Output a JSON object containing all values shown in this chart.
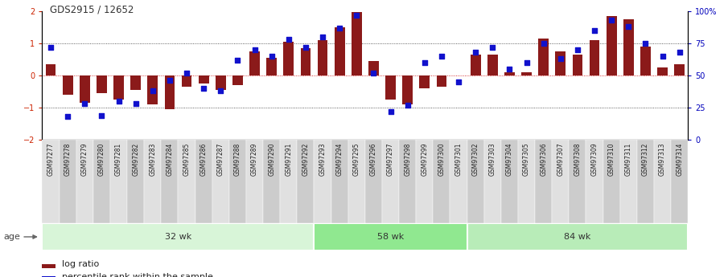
{
  "title": "GDS2915 / 12652",
  "samples": [
    "GSM97277",
    "GSM97278",
    "GSM97279",
    "GSM97280",
    "GSM97281",
    "GSM97282",
    "GSM97283",
    "GSM97284",
    "GSM97285",
    "GSM97286",
    "GSM97287",
    "GSM97288",
    "GSM97289",
    "GSM97290",
    "GSM97291",
    "GSM97292",
    "GSM97293",
    "GSM97294",
    "GSM97295",
    "GSM97296",
    "GSM97297",
    "GSM97298",
    "GSM97299",
    "GSM97300",
    "GSM97301",
    "GSM97302",
    "GSM97303",
    "GSM97304",
    "GSM97305",
    "GSM97306",
    "GSM97307",
    "GSM97308",
    "GSM97309",
    "GSM97310",
    "GSM97311",
    "GSM97312",
    "GSM97313",
    "GSM97314"
  ],
  "log_ratio": [
    0.35,
    -0.6,
    -0.85,
    -0.55,
    -0.75,
    -0.45,
    -0.9,
    -1.05,
    -0.35,
    -0.25,
    -0.45,
    -0.3,
    0.75,
    0.55,
    1.05,
    0.85,
    1.1,
    1.5,
    1.97,
    0.45,
    -0.75,
    -0.9,
    -0.4,
    -0.35,
    0.0,
    0.65,
    0.65,
    0.1,
    0.1,
    1.15,
    0.75,
    0.65,
    1.1,
    1.85,
    1.75,
    0.9,
    0.25,
    0.35
  ],
  "percentile": [
    0.72,
    0.18,
    0.28,
    0.19,
    0.3,
    0.28,
    0.38,
    0.46,
    0.52,
    0.4,
    0.38,
    0.62,
    0.7,
    0.65,
    0.78,
    0.72,
    0.8,
    0.87,
    0.97,
    0.52,
    0.22,
    0.27,
    0.6,
    0.65,
    0.45,
    0.68,
    0.72,
    0.55,
    0.6,
    0.75,
    0.63,
    0.7,
    0.85,
    0.93,
    0.88,
    0.75,
    0.65,
    0.68
  ],
  "group_labels": [
    "32 wk",
    "58 wk",
    "84 wk"
  ],
  "group_ends": [
    16,
    25,
    38
  ],
  "group_color_light": "#d8f5d8",
  "group_color_mid": "#90e890",
  "group_color_dark": "#b8ecb8",
  "bar_color": "#8b1a1a",
  "dot_color": "#1111cc",
  "ylim": [
    -2,
    2
  ],
  "yticks_left": [
    -2,
    -1,
    0,
    1,
    2
  ],
  "yticks_right": [
    0,
    25,
    50,
    75,
    100
  ],
  "legend_items": [
    "log ratio",
    "percentile rank within the sample"
  ],
  "legend_colors": [
    "#8b1a1a",
    "#1111cc"
  ],
  "age_label": "age"
}
